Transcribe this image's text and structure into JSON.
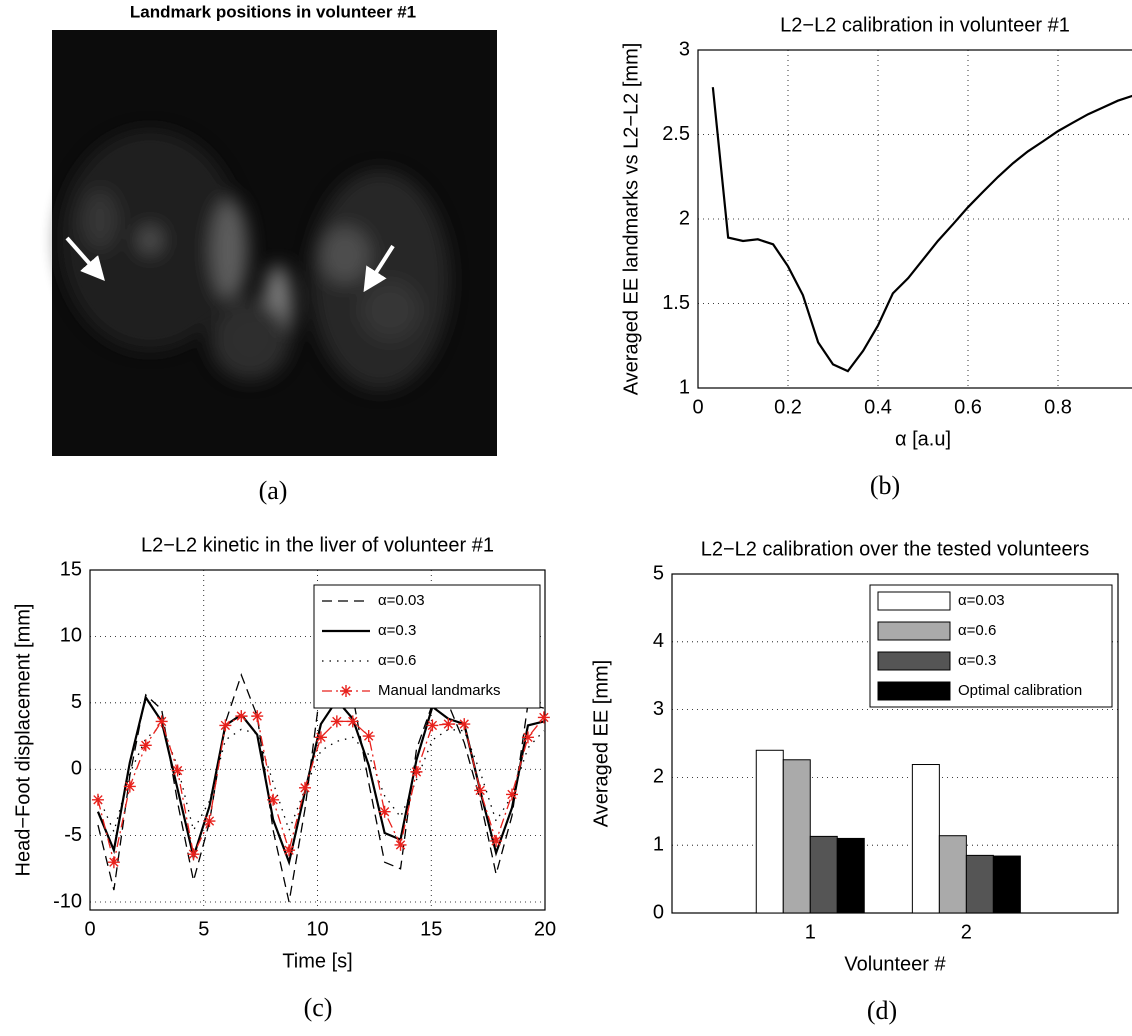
{
  "image_panel": {
    "title": "Landmark positions in volunteer #1",
    "caption": "(a)"
  },
  "chart_data": [
    {
      "type": "line",
      "title": "L2−L2 calibration in volunteer #1",
      "xlabel": "α [a.u]",
      "ylabel": "Averaged EE landmarks vs L2−L2 [mm]",
      "caption": "(b)",
      "x": [
        0.033,
        0.067,
        0.1,
        0.133,
        0.167,
        0.2,
        0.233,
        0.267,
        0.3,
        0.333,
        0.367,
        0.4,
        0.433,
        0.467,
        0.5,
        0.533,
        0.567,
        0.6,
        0.633,
        0.667,
        0.7,
        0.733,
        0.767,
        0.8,
        0.833,
        0.867,
        0.9,
        0.933,
        0.967
      ],
      "values": [
        2.78,
        1.89,
        1.87,
        1.88,
        1.85,
        1.72,
        1.55,
        1.27,
        1.14,
        1.1,
        1.22,
        1.37,
        1.56,
        1.65,
        1.76,
        1.87,
        1.97,
        2.07,
        2.16,
        2.25,
        2.33,
        2.4,
        2.46,
        2.52,
        2.57,
        2.62,
        2.66,
        2.7,
        2.73
      ],
      "color": "#000000",
      "xlim": [
        0,
        1
      ],
      "xticks": [
        0,
        0.2,
        0.4,
        0.6,
        0.8
      ],
      "ylim": [
        1,
        3
      ],
      "yticks": [
        1,
        1.5,
        2,
        2.5,
        3
      ],
      "grid": true
    },
    {
      "type": "line",
      "title": "L2−L2 kinetic in the liver of volunteer #1",
      "xlabel": "Time [s]",
      "ylabel": "Head−Foot displacement [mm]",
      "caption": "(c)",
      "x": [
        0.35,
        1.05,
        1.75,
        2.45,
        3.15,
        3.85,
        4.55,
        5.25,
        5.95,
        6.65,
        7.35,
        8.05,
        8.75,
        9.45,
        10.15,
        10.85,
        11.55,
        12.25,
        12.95,
        13.65,
        14.35,
        15.05,
        15.75,
        16.45,
        17.15,
        17.85,
        18.55,
        19.25,
        19.95
      ],
      "series": [
        {
          "name": "α=0.03",
          "color": "#000000",
          "line_style": "dashed",
          "values": [
            -4.2,
            -9.1,
            -0.5,
            5.6,
            4.5,
            -2.5,
            -8.4,
            -4,
            3.5,
            7.1,
            4,
            -4.6,
            -10,
            -3,
            6.3,
            5.5,
            5.5,
            -1,
            -7,
            -7.5,
            1.5,
            4.9,
            4.9,
            2,
            -2.3,
            -7.9,
            -3.5,
            4.9,
            4.6
          ]
        },
        {
          "name": "α=0.3",
          "color": "#000000",
          "line_style": "solid",
          "values": [
            -3.2,
            -6.1,
            0.5,
            5.4,
            3.6,
            -1.5,
            -6.6,
            -2.8,
            3.3,
            4.1,
            2.6,
            -3.8,
            -7,
            -1.7,
            3.4,
            5.2,
            3.8,
            0.3,
            -4.8,
            -5.3,
            0.7,
            4.7,
            3.8,
            3.4,
            -1.6,
            -6.3,
            -2.9,
            3.3,
            3.6
          ]
        },
        {
          "name": "α=0.6",
          "color": "#000000",
          "line_style": "dotted",
          "values": [
            -2,
            -4.7,
            -0.3,
            2.3,
            3.3,
            0.2,
            -4.6,
            -2.4,
            2.2,
            3,
            2.7,
            -1,
            -4.6,
            -1.5,
            1.4,
            2.1,
            2.4,
            1.1,
            -2,
            -3.6,
            -0.8,
            2.2,
            3,
            2.9,
            -0.2,
            -3.9,
            -2,
            1.6,
            2.9
          ]
        },
        {
          "name": "Manual landmarks",
          "color": "#e8211c",
          "line_style": "dashdot",
          "marker": "asterisk",
          "values": [
            -2.3,
            -7,
            -1.3,
            1.8,
            3.6,
            -0.1,
            -6.4,
            -3.9,
            3.3,
            4,
            4,
            -2.3,
            -6.1,
            -1.4,
            2.4,
            3.6,
            3.6,
            2.5,
            -3.2,
            -5.7,
            -0.2,
            3.3,
            3.4,
            3.4,
            -1.6,
            -5.4,
            -1.9,
            2.4,
            3.9
          ]
        }
      ],
      "xlim": [
        0,
        20
      ],
      "xticks": [
        0,
        5,
        10,
        15,
        20
      ],
      "ylim": [
        -10.6,
        15
      ],
      "yticks": [
        -10,
        -5,
        0,
        5,
        10,
        15
      ],
      "grid": true,
      "legend": "northeast"
    },
    {
      "type": "bar",
      "title": "L2−L2 calibration over the tested volunteers",
      "xlabel": "Volunteer #",
      "ylabel": "Averaged EE [mm]",
      "caption": "(d)",
      "categories": [
        "1",
        "2"
      ],
      "series": [
        {
          "name": "α=0.03",
          "color": "#ffffff",
          "values": [
            2.4,
            2.19
          ]
        },
        {
          "name": "α=0.6",
          "color": "#aaaaaa",
          "values": [
            2.26,
            1.14
          ]
        },
        {
          "name": "α=0.3",
          "color": "#555555",
          "values": [
            1.13,
            0.85
          ]
        },
        {
          "name": "Optimal calibration",
          "color": "#000000",
          "values": [
            1.1,
            0.84
          ]
        }
      ],
      "ylim": [
        0,
        5
      ],
      "yticks": [
        0,
        1,
        2,
        3,
        4,
        5
      ],
      "grid": true,
      "legend": "northeast"
    }
  ]
}
